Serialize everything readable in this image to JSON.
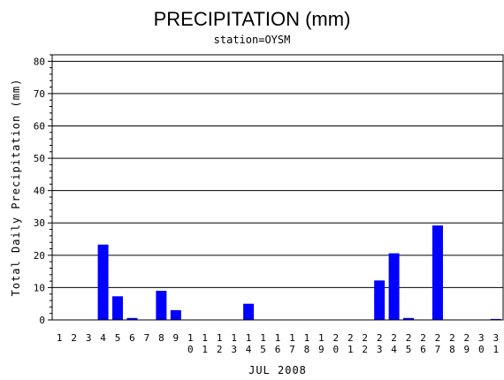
{
  "chart_data": {
    "type": "bar",
    "title": "PRECIPITATION (mm)",
    "subtitle": "station=OYSM",
    "xlabel": "JUL 2008",
    "ylabel": "Total Daily Precipitation (mm)",
    "ylim": [
      0,
      82
    ],
    "yticks": [
      0,
      10,
      20,
      30,
      40,
      50,
      60,
      70,
      80
    ],
    "grid": true,
    "bar_color": "#0000ff",
    "categories": [
      "1",
      "2",
      "3",
      "4",
      "5",
      "6",
      "7",
      "8",
      "9",
      "10",
      "11",
      "12",
      "13",
      "14",
      "15",
      "16",
      "17",
      "18",
      "19",
      "20",
      "21",
      "22",
      "23",
      "24",
      "25",
      "26",
      "27",
      "28",
      "29",
      "30",
      "31"
    ],
    "values": [
      0,
      0,
      0,
      23.3,
      7.3,
      0.6,
      0,
      9.0,
      3.0,
      0,
      0,
      0,
      0,
      5.0,
      0,
      0,
      0,
      0,
      0,
      0,
      0,
      0,
      12.2,
      20.6,
      0.6,
      0,
      29.2,
      0,
      0,
      0,
      0.3
    ]
  }
}
